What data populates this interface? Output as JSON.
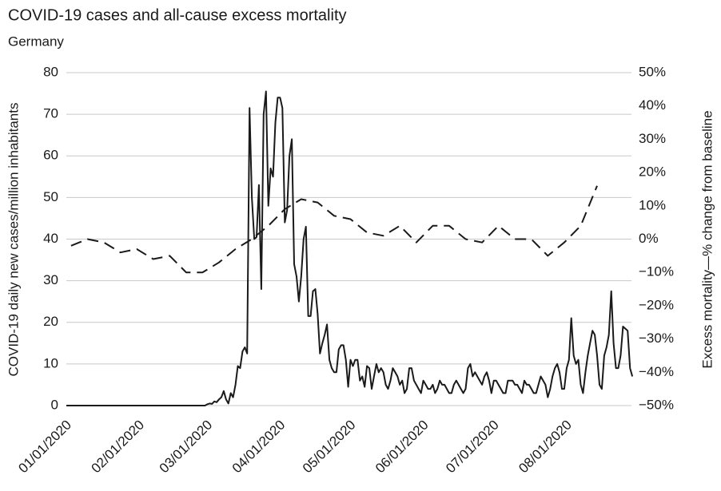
{
  "chart_data": {
    "type": "line",
    "title": "COVID-19 cases and all-cause excess mortality",
    "subtitle": "Germany",
    "y_label": "COVID-19 daily new cases/million inhabitants",
    "y2_label": "Excess mortality—% change from baseline",
    "xlim": [
      "2020-01-01",
      "2020-08-31"
    ],
    "xticks": [
      {
        "value": "2020-01-01",
        "label": "01/01/2020"
      },
      {
        "value": "2020-02-01",
        "label": "02/01/2020"
      },
      {
        "value": "2020-03-01",
        "label": "03/01/2020"
      },
      {
        "value": "2020-04-01",
        "label": "04/01/2020"
      },
      {
        "value": "2020-05-01",
        "label": "05/01/2020"
      },
      {
        "value": "2020-06-01",
        "label": "06/01/2020"
      },
      {
        "value": "2020-07-01",
        "label": "07/01/2020"
      },
      {
        "value": "2020-08-01",
        "label": "08/01/2020"
      }
    ],
    "ylim": [
      0,
      80
    ],
    "yticks": [
      0,
      10,
      20,
      30,
      40,
      50,
      60,
      70,
      80
    ],
    "y2lim": [
      -50,
      50
    ],
    "y2ticks": [
      {
        "value": -50,
        "label": "−50%"
      },
      {
        "value": -40,
        "label": "−40%"
      },
      {
        "value": -30,
        "label": "−30%"
      },
      {
        "value": -20,
        "label": "−20%"
      },
      {
        "value": -10,
        "label": "−10%"
      },
      {
        "value": 0,
        "label": "0%"
      },
      {
        "value": 10,
        "label": "10%"
      },
      {
        "value": 20,
        "label": "20%"
      },
      {
        "value": 30,
        "label": "30%"
      },
      {
        "value": 40,
        "label": "40%"
      },
      {
        "value": 50,
        "label": "50%"
      }
    ],
    "grid": true,
    "series": [
      {
        "color": "#1a1a1a",
        "dash": false,
        "x": [
          "2020-01-01",
          "2020-02-29",
          "2020-03-01",
          "2020-03-02",
          "2020-03-03",
          "2020-03-04",
          "2020-03-05",
          "2020-03-06",
          "2020-03-07",
          "2020-03-08",
          "2020-03-09",
          "2020-03-10",
          "2020-03-11",
          "2020-03-12",
          "2020-03-13",
          "2020-03-14",
          "2020-03-15",
          "2020-03-16",
          "2020-03-17",
          "2020-03-18",
          "2020-03-19",
          "2020-03-20",
          "2020-03-21",
          "2020-03-22",
          "2020-03-23",
          "2020-03-24",
          "2020-03-25",
          "2020-03-26",
          "2020-03-27",
          "2020-03-28",
          "2020-03-29",
          "2020-03-30",
          "2020-03-31",
          "2020-04-01",
          "2020-04-02",
          "2020-04-03",
          "2020-04-04",
          "2020-04-05",
          "2020-04-06",
          "2020-04-07",
          "2020-04-08",
          "2020-04-09",
          "2020-04-10",
          "2020-04-11",
          "2020-04-12",
          "2020-04-13",
          "2020-04-14",
          "2020-04-15",
          "2020-04-16",
          "2020-04-17",
          "2020-04-18",
          "2020-04-19",
          "2020-04-20",
          "2020-04-21",
          "2020-04-22",
          "2020-04-23",
          "2020-04-24",
          "2020-04-25",
          "2020-04-26",
          "2020-04-27",
          "2020-04-28",
          "2020-04-29",
          "2020-04-30",
          "2020-05-01",
          "2020-05-02",
          "2020-05-03",
          "2020-05-04",
          "2020-05-05",
          "2020-05-06",
          "2020-05-07",
          "2020-05-08",
          "2020-05-09",
          "2020-05-10",
          "2020-05-11",
          "2020-05-12",
          "2020-05-13",
          "2020-05-14",
          "2020-05-15",
          "2020-05-16",
          "2020-05-17",
          "2020-05-18",
          "2020-05-19",
          "2020-05-20",
          "2020-05-21",
          "2020-05-22",
          "2020-05-23",
          "2020-05-24",
          "2020-05-25",
          "2020-05-26",
          "2020-05-27",
          "2020-05-28",
          "2020-05-29",
          "2020-05-30",
          "2020-05-31",
          "2020-06-01",
          "2020-06-02",
          "2020-06-03",
          "2020-06-04",
          "2020-06-05",
          "2020-06-06",
          "2020-06-07",
          "2020-06-08",
          "2020-06-09",
          "2020-06-10",
          "2020-06-11",
          "2020-06-12",
          "2020-06-13",
          "2020-06-14",
          "2020-06-15",
          "2020-06-16",
          "2020-06-17",
          "2020-06-18",
          "2020-06-19",
          "2020-06-20",
          "2020-06-21",
          "2020-06-22",
          "2020-06-23",
          "2020-06-24",
          "2020-06-25",
          "2020-06-26",
          "2020-06-27",
          "2020-06-28",
          "2020-06-29",
          "2020-06-30",
          "2020-07-01",
          "2020-07-02",
          "2020-07-03",
          "2020-07-04",
          "2020-07-05",
          "2020-07-06",
          "2020-07-07",
          "2020-07-08",
          "2020-07-09",
          "2020-07-10",
          "2020-07-11",
          "2020-07-12",
          "2020-07-13",
          "2020-07-14",
          "2020-07-15",
          "2020-07-16",
          "2020-07-17",
          "2020-07-18",
          "2020-07-19",
          "2020-07-20",
          "2020-07-21",
          "2020-07-22",
          "2020-07-23",
          "2020-07-24",
          "2020-07-25",
          "2020-07-26",
          "2020-07-27",
          "2020-07-28",
          "2020-07-29",
          "2020-07-30",
          "2020-07-31",
          "2020-08-01",
          "2020-08-02",
          "2020-08-03",
          "2020-08-04",
          "2020-08-05",
          "2020-08-06",
          "2020-08-07",
          "2020-08-08",
          "2020-08-09",
          "2020-08-10",
          "2020-08-11",
          "2020-08-12",
          "2020-08-13",
          "2020-08-14",
          "2020-08-15",
          "2020-08-16",
          "2020-08-17",
          "2020-08-18",
          "2020-08-19",
          "2020-08-20",
          "2020-08-21",
          "2020-08-22",
          "2020-08-23",
          "2020-08-24",
          "2020-08-25",
          "2020-08-26",
          "2020-08-27",
          "2020-08-28",
          "2020-08-29"
        ],
        "values": [
          0,
          0,
          0.3,
          0.5,
          0.4,
          1,
          0.8,
          1.5,
          2,
          3.5,
          1.5,
          0.5,
          3,
          2,
          5,
          9.5,
          9,
          13,
          14,
          12.5,
          71.5,
          50,
          40,
          40.5,
          53,
          28,
          70,
          75.5,
          48,
          57,
          55,
          68,
          74,
          74,
          71.5,
          44,
          47,
          60,
          64,
          34,
          31,
          25,
          31,
          40,
          43,
          21.5,
          21.5,
          27.5,
          28,
          22,
          12.5,
          15,
          17,
          19.5,
          11,
          9,
          8,
          8,
          13.5,
          14.5,
          14.5,
          11,
          4.5,
          11,
          9.5,
          11,
          11,
          6,
          7,
          4.5,
          9.5,
          9,
          4,
          7,
          10,
          8,
          9,
          8,
          5,
          4,
          6,
          9,
          8,
          7,
          5,
          6,
          3,
          4,
          9,
          9,
          6,
          5,
          4,
          3,
          6,
          5,
          4,
          4,
          5,
          3,
          4,
          6,
          5,
          5,
          4,
          3,
          3,
          5,
          6,
          5,
          4,
          3,
          4,
          9,
          10,
          7,
          8,
          7,
          6,
          5,
          7,
          8,
          6,
          3,
          6,
          6,
          5,
          4,
          3,
          3,
          6,
          6,
          6,
          5,
          5,
          4,
          3,
          6,
          5,
          5,
          4,
          3,
          3,
          5,
          7,
          6,
          5,
          2,
          4,
          7,
          9,
          10,
          8,
          4,
          4,
          9,
          11,
          21,
          12,
          10,
          11,
          5,
          3,
          8,
          12,
          15,
          18,
          17,
          12,
          5,
          4,
          12,
          14,
          17,
          27.5,
          15,
          9,
          9,
          12,
          19,
          18.5,
          18,
          9,
          7
        ]
      },
      {
        "color": "#1a1a1a",
        "dash": true,
        "axis": "y2",
        "x": [
          "2020-01-03",
          "2020-01-10",
          "2020-01-17",
          "2020-01-24",
          "2020-01-31",
          "2020-02-07",
          "2020-02-14",
          "2020-02-21",
          "2020-02-28",
          "2020-03-06",
          "2020-03-13",
          "2020-03-20",
          "2020-03-27",
          "2020-04-03",
          "2020-04-10",
          "2020-04-17",
          "2020-04-24",
          "2020-05-01",
          "2020-05-08",
          "2020-05-15",
          "2020-05-22",
          "2020-05-29",
          "2020-06-05",
          "2020-06-12",
          "2020-06-19",
          "2020-06-26",
          "2020-07-03",
          "2020-07-10",
          "2020-07-17",
          "2020-07-24",
          "2020-07-31",
          "2020-08-07",
          "2020-08-14"
        ],
        "values": [
          -2,
          0,
          -1,
          -4,
          -3,
          -6,
          -5,
          -10,
          -10,
          -7,
          -3,
          0,
          4,
          9,
          12,
          11,
          7,
          6,
          2,
          1,
          4,
          -1,
          4,
          4,
          0,
          -1,
          4,
          0,
          0,
          -5,
          -1,
          4,
          16
        ]
      }
    ]
  }
}
